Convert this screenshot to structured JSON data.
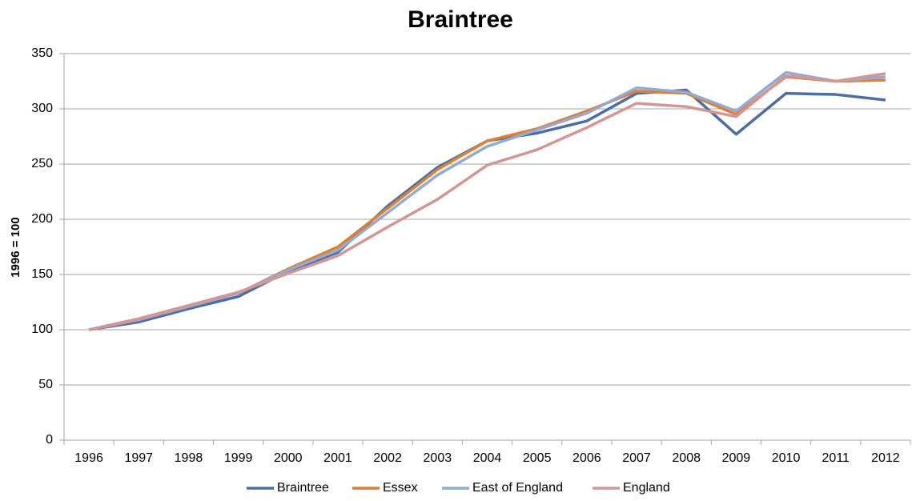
{
  "chart_data": {
    "type": "line",
    "title": "Braintree",
    "y_label": "1996 = 100",
    "categories": [
      "1996",
      "1997",
      "1998",
      "1999",
      "2000",
      "2001",
      "2002",
      "2003",
      "2004",
      "2005",
      "2006",
      "2007",
      "2008",
      "2009",
      "2010",
      "2011",
      "2012"
    ],
    "series": [
      {
        "name": "Braintree",
        "color": "#4a6ea5",
        "values": [
          100,
          107,
          119,
          130,
          153,
          170,
          212,
          247,
          271,
          278,
          289,
          314,
          317,
          277,
          314,
          313,
          308
        ]
      },
      {
        "name": "Essex",
        "color": "#e07f2f",
        "values": [
          100,
          109,
          121,
          133,
          155,
          175,
          210,
          245,
          271,
          282,
          298,
          316,
          314,
          295,
          329,
          325,
          326
        ]
      },
      {
        "name": "East of England",
        "color": "#93aad2",
        "values": [
          100,
          109,
          121,
          133,
          154,
          172,
          206,
          240,
          266,
          281,
          296,
          319,
          315,
          298,
          333,
          325,
          329
        ]
      },
      {
        "name": "England",
        "color": "#d59595",
        "values": [
          100,
          110,
          122,
          134,
          151,
          167,
          193,
          218,
          249,
          263,
          283,
          305,
          302,
          293,
          330,
          325,
          332
        ]
      }
    ],
    "ylim": [
      0,
      350
    ],
    "yticks": [
      0,
      50,
      100,
      150,
      200,
      250,
      300,
      350
    ],
    "grid": true,
    "legend": "bottom"
  }
}
